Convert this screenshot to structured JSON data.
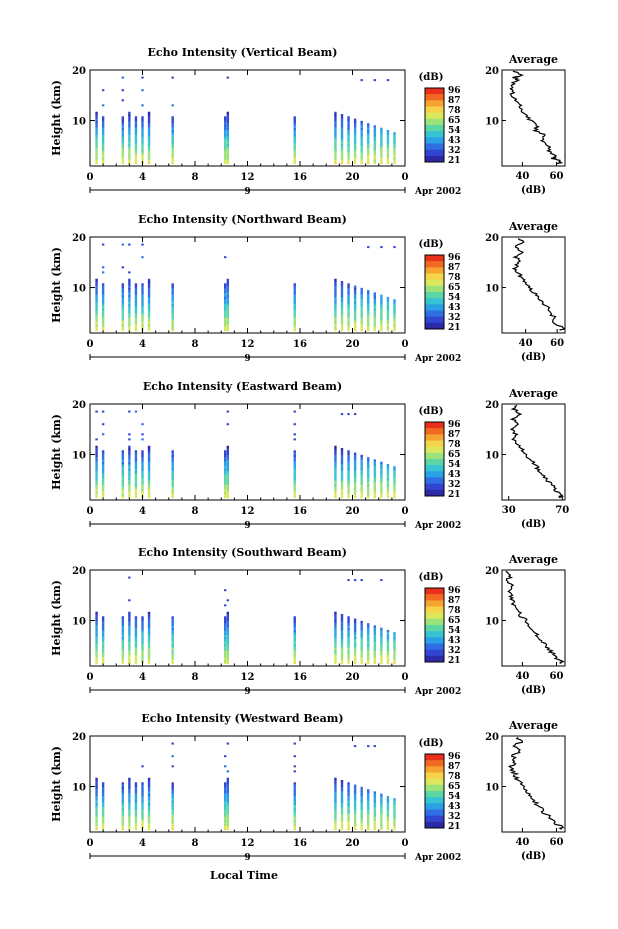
{
  "figure": {
    "x_axis_label": "Local Time",
    "date_label": "Apr 2002",
    "bottom_day_label": "9"
  },
  "colorbar": {
    "unit": "(dB)",
    "tick_labels": [
      "96",
      "87",
      "78",
      "65",
      "54",
      "43",
      "32",
      "21"
    ],
    "colors": [
      "#e8301c",
      "#f26a22",
      "#f5a431",
      "#f5d44a",
      "#dbe75d",
      "#9be27a",
      "#5cd6a5",
      "#36c3d2",
      "#2aa0e6",
      "#2f6fe3",
      "#3145d1",
      "#2a2aa6"
    ]
  },
  "chart_data": [
    {
      "type": "heatmap",
      "title": "Echo Intensity (Vertical Beam)",
      "ylabel": "Height (km)",
      "xlabel": "Local Time",
      "x_ticks": [
        "0",
        "4",
        "8",
        "12",
        "16",
        "20",
        "0"
      ],
      "y_ticks": [
        "20",
        "10"
      ],
      "xlim": [
        0,
        24
      ],
      "ylim": [
        1,
        20
      ],
      "profile_title": "Average",
      "profile_xlabel": "(dB)",
      "profile_x_ticks": [
        "40",
        "60"
      ],
      "profile_y_ticks": [
        "20",
        "10"
      ],
      "profile_xlim": [
        28,
        65
      ],
      "profile": [
        [
          61,
          1.5
        ],
        [
          63,
          2
        ],
        [
          58,
          2.5
        ],
        [
          60,
          3
        ],
        [
          55,
          4
        ],
        [
          56,
          5
        ],
        [
          52,
          6
        ],
        [
          53,
          7
        ],
        [
          48,
          8
        ],
        [
          49,
          9
        ],
        [
          45,
          10
        ],
        [
          43,
          11
        ],
        [
          40,
          12
        ],
        [
          38,
          13
        ],
        [
          36,
          14
        ],
        [
          34,
          15
        ],
        [
          35,
          16
        ],
        [
          33,
          17
        ],
        [
          38,
          18
        ],
        [
          35,
          18.5
        ],
        [
          40,
          19
        ],
        [
          34,
          20
        ]
      ]
    },
    {
      "type": "heatmap",
      "title": "Echo Intensity (Northward Beam)",
      "ylabel": "Height (km)",
      "xlabel": "Local Time",
      "x_ticks": [
        "0",
        "4",
        "8",
        "12",
        "16",
        "20",
        "0"
      ],
      "y_ticks": [
        "20",
        "10"
      ],
      "xlim": [
        0,
        24
      ],
      "ylim": [
        1,
        20
      ],
      "profile_title": "Average",
      "profile_xlabel": "(dB)",
      "profile_x_ticks": [
        "40",
        "60"
      ],
      "profile_y_ticks": [
        "20",
        "10"
      ],
      "profile_xlim": [
        25,
        65
      ],
      "profile": [
        [
          62,
          1.5
        ],
        [
          64,
          2
        ],
        [
          58,
          3
        ],
        [
          59,
          4
        ],
        [
          55,
          5
        ],
        [
          54,
          6
        ],
        [
          50,
          7
        ],
        [
          49,
          8
        ],
        [
          45,
          9
        ],
        [
          43,
          10
        ],
        [
          40,
          11
        ],
        [
          37,
          12
        ],
        [
          35,
          13
        ],
        [
          33,
          14
        ],
        [
          36,
          15
        ],
        [
          34,
          16
        ],
        [
          37,
          17
        ],
        [
          33,
          18
        ],
        [
          38,
          19
        ],
        [
          35,
          20
        ]
      ]
    },
    {
      "type": "heatmap",
      "title": "Echo Intensity (Eastward Beam)",
      "ylabel": "Height (km)",
      "xlabel": "Local Time",
      "x_ticks": [
        "0",
        "4",
        "8",
        "12",
        "16",
        "20",
        "0"
      ],
      "y_ticks": [
        "20",
        "10"
      ],
      "xlim": [
        0,
        24
      ],
      "ylim": [
        1,
        20
      ],
      "profile_title": "Average",
      "profile_xlabel": "(dB)",
      "profile_x_ticks": [
        "30",
        "70"
      ],
      "profile_y_ticks": [
        "20",
        "10"
      ],
      "profile_xlim": [
        25,
        72
      ],
      "profile": [
        [
          68,
          1.5
        ],
        [
          70,
          2
        ],
        [
          64,
          3
        ],
        [
          63,
          4
        ],
        [
          58,
          5
        ],
        [
          56,
          6
        ],
        [
          52,
          7
        ],
        [
          50,
          8
        ],
        [
          46,
          9
        ],
        [
          43,
          10
        ],
        [
          40,
          11
        ],
        [
          37,
          12
        ],
        [
          34,
          13
        ],
        [
          35,
          14
        ],
        [
          32,
          15
        ],
        [
          36,
          16
        ],
        [
          33,
          17
        ],
        [
          38,
          18
        ],
        [
          34,
          19
        ],
        [
          37,
          20
        ]
      ]
    },
    {
      "type": "heatmap",
      "title": "Echo Intensity (Southward Beam)",
      "ylabel": "Height (km)",
      "xlabel": "Local Time",
      "x_ticks": [
        "0",
        "4",
        "8",
        "12",
        "16",
        "20",
        "0"
      ],
      "y_ticks": [
        "20",
        "10"
      ],
      "xlim": [
        0,
        24
      ],
      "ylim": [
        1,
        20
      ],
      "profile_title": "Average",
      "profile_xlabel": "(dB)",
      "profile_x_ticks": [
        "40",
        "60"
      ],
      "profile_y_ticks": [
        "20",
        "10"
      ],
      "profile_xlim": [
        28,
        65
      ],
      "profile": [
        [
          62,
          1.5
        ],
        [
          63,
          2
        ],
        [
          58,
          3
        ],
        [
          57,
          4
        ],
        [
          53,
          5
        ],
        [
          52,
          6
        ],
        [
          49,
          7
        ],
        [
          47,
          8
        ],
        [
          44,
          9
        ],
        [
          42,
          10
        ],
        [
          39,
          11
        ],
        [
          37,
          12
        ],
        [
          35,
          13
        ],
        [
          34,
          14
        ],
        [
          33,
          15
        ],
        [
          32,
          16
        ],
        [
          34,
          17
        ],
        [
          31,
          18
        ],
        [
          33,
          19
        ],
        [
          30,
          20
        ]
      ]
    },
    {
      "type": "heatmap",
      "title": "Echo Intensity (Westward Beam)",
      "ylabel": "Height (km)",
      "xlabel": "Local Time",
      "x_ticks": [
        "0",
        "4",
        "8",
        "12",
        "16",
        "20",
        "0"
      ],
      "y_ticks": [
        "20",
        "10"
      ],
      "xlim": [
        0,
        24
      ],
      "ylim": [
        1,
        20
      ],
      "profile_title": "Average",
      "profile_xlabel": "(dB)",
      "profile_x_ticks": [
        "40",
        "60"
      ],
      "profile_y_ticks": [
        "20",
        "10"
      ],
      "profile_xlim": [
        28,
        65
      ],
      "profile": [
        [
          62,
          1.5
        ],
        [
          63,
          2
        ],
        [
          58,
          3
        ],
        [
          56,
          4
        ],
        [
          52,
          5
        ],
        [
          50,
          6
        ],
        [
          47,
          7
        ],
        [
          46,
          8
        ],
        [
          43,
          9
        ],
        [
          41,
          10
        ],
        [
          38,
          11
        ],
        [
          36,
          12
        ],
        [
          35,
          13
        ],
        [
          33,
          14
        ],
        [
          36,
          15
        ],
        [
          34,
          16
        ],
        [
          38,
          17
        ],
        [
          35,
          18
        ],
        [
          40,
          19
        ],
        [
          36,
          20
        ]
      ]
    }
  ],
  "observation_times_hours": [
    0.5,
    1.0,
    2.5,
    3.0,
    3.5,
    4.0,
    4.5,
    6.3,
    10.3,
    10.5,
    15.6,
    18.7,
    19.2,
    19.7,
    20.2,
    20.7,
    21.2,
    21.7,
    22.2,
    22.7,
    23.2
  ]
}
